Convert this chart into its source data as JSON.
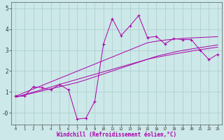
{
  "xlabel": "Windchill (Refroidissement éolien,°C)",
  "background_color": "#cce8e8",
  "grid_color": "#aacccc",
  "line_color": "#aa00aa",
  "xlim": [
    -0.5,
    23.5
  ],
  "ylim": [
    -0.55,
    5.3
  ],
  "yticks": [
    5,
    4,
    3,
    2,
    1,
    0
  ],
  "ytick_labels": [
    "5",
    "4",
    "3",
    "2",
    "1",
    "-0"
  ],
  "xticks": [
    0,
    1,
    2,
    3,
    4,
    5,
    6,
    7,
    8,
    9,
    10,
    11,
    12,
    13,
    14,
    15,
    16,
    17,
    18,
    19,
    20,
    21,
    22,
    23
  ],
  "x_data": [
    0,
    1,
    2,
    3,
    4,
    5,
    6,
    7,
    8,
    9,
    10,
    11,
    12,
    13,
    14,
    15,
    16,
    17,
    18,
    19,
    20,
    21,
    22,
    23
  ],
  "y_main": [
    0.8,
    0.8,
    1.25,
    1.2,
    1.1,
    1.35,
    1.1,
    -0.3,
    -0.25,
    0.55,
    3.3,
    4.5,
    3.7,
    4.15,
    4.65,
    3.6,
    3.65,
    3.3,
    3.55,
    3.5,
    3.5,
    3.0,
    2.55,
    2.8
  ],
  "y_reg1": [
    0.75,
    0.85,
    0.95,
    1.05,
    1.15,
    1.25,
    1.35,
    1.45,
    1.58,
    1.72,
    1.86,
    2.0,
    2.14,
    2.28,
    2.42,
    2.56,
    2.7,
    2.8,
    2.9,
    2.98,
    3.05,
    3.12,
    3.18,
    3.25
  ],
  "y_reg2": [
    0.75,
    0.87,
    0.99,
    1.11,
    1.23,
    1.36,
    1.48,
    1.6,
    1.72,
    1.84,
    1.96,
    2.08,
    2.2,
    2.32,
    2.44,
    2.56,
    2.65,
    2.73,
    2.81,
    2.88,
    2.95,
    3.02,
    3.08,
    3.14
  ],
  "y_reg3": [
    0.8,
    0.97,
    1.14,
    1.31,
    1.48,
    1.65,
    1.82,
    1.99,
    2.16,
    2.33,
    2.5,
    2.67,
    2.84,
    3.01,
    3.18,
    3.35,
    3.42,
    3.48,
    3.52,
    3.56,
    3.58,
    3.6,
    3.62,
    3.64
  ]
}
